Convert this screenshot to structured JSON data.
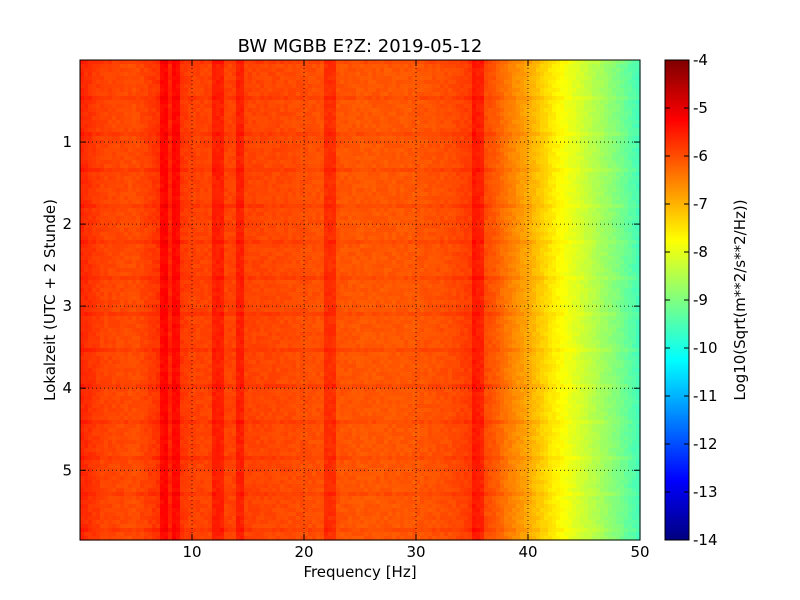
{
  "chart_data": {
    "type": "heatmap",
    "title": "BW MGBB E?Z: 2019-05-12",
    "xlabel": "Frequency [Hz]",
    "ylabel": "Lokalzeit (UTC + 2 Stunde)",
    "colorbar_label": "Log10(Sqrt(m**2/s**2/Hz))",
    "xlim": [
      0,
      50
    ],
    "ylim": [
      5.85,
      0
    ],
    "x_ticks": [
      "10",
      "20",
      "30",
      "40",
      "50"
    ],
    "x_tick_values": [
      10,
      20,
      30,
      40,
      50
    ],
    "y_ticks": [
      "1",
      "2",
      "3",
      "4",
      "5"
    ],
    "y_tick_values": [
      1,
      2,
      3,
      4,
      5
    ],
    "colorbar_range": [
      -14,
      -4
    ],
    "colorbar_ticks": [
      "-4",
      "-5",
      "-6",
      "-7",
      "-8",
      "-9",
      "-10",
      "-11",
      "-12",
      "-13",
      "-14"
    ],
    "colorbar_tick_values": [
      -4,
      -5,
      -6,
      -7,
      -8,
      -9,
      -10,
      -11,
      -12,
      -13,
      -14
    ],
    "colormap": "jet",
    "grid": true,
    "spectrum_profile": {
      "frequency": [
        0,
        2,
        5,
        8,
        10,
        15,
        20,
        25,
        30,
        33,
        35,
        37,
        38,
        40,
        42,
        44,
        46,
        48,
        50
      ],
      "value": [
        -5.6,
        -5.9,
        -6.0,
        -5.6,
        -5.9,
        -5.9,
        -6.0,
        -6.1,
        -6.1,
        -6.0,
        -5.8,
        -6.1,
        -6.4,
        -6.9,
        -7.5,
        -8.0,
        -8.5,
        -9.0,
        -9.6
      ]
    },
    "spectral_lines_hz": [
      7.5,
      8.5,
      12.3,
      14.3,
      22.3,
      35.5
    ]
  }
}
